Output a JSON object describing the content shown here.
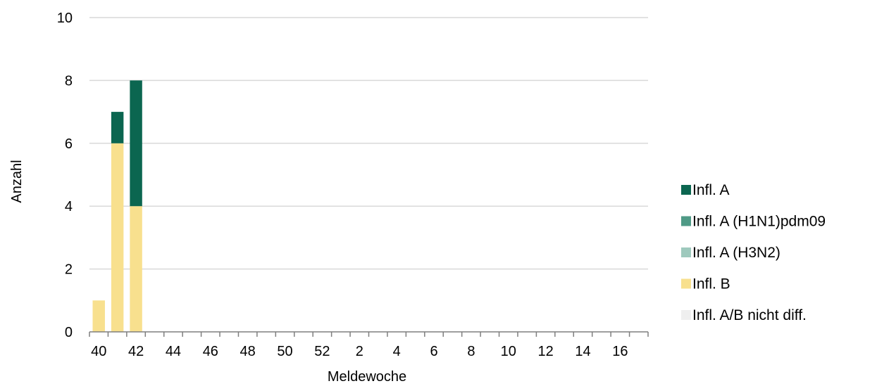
{
  "chart_data": {
    "type": "bar",
    "stacked": true,
    "xlabel": "Meldewoche",
    "ylabel": "Anzahl",
    "ylim": [
      0,
      10
    ],
    "yticks": [
      0,
      2,
      4,
      6,
      8,
      10
    ],
    "grid": true,
    "legend_position": "right",
    "categories": [
      "40",
      "41",
      "42",
      "43",
      "44",
      "45",
      "46",
      "47",
      "48",
      "49",
      "50",
      "51",
      "52",
      "1",
      "2",
      "3",
      "4",
      "5",
      "6",
      "7",
      "8",
      "9",
      "10",
      "11",
      "12",
      "13",
      "14",
      "15",
      "16",
      "17"
    ],
    "xtick_labels": [
      "40",
      "42",
      "44",
      "46",
      "48",
      "50",
      "52",
      "2",
      "4",
      "6",
      "8",
      "10",
      "12",
      "14",
      "16"
    ],
    "series": [
      {
        "name": "Infl. A",
        "color": "#0b6650",
        "values": [
          0,
          1,
          4,
          0,
          0,
          0,
          0,
          0,
          0,
          0,
          0,
          0,
          0,
          0,
          0,
          0,
          0,
          0,
          0,
          0,
          0,
          0,
          0,
          0,
          0,
          0,
          0,
          0,
          0,
          0
        ]
      },
      {
        "name": "Infl. A (H1N1)pdm09",
        "color": "#4f9a86",
        "values": [
          0,
          0,
          0,
          0,
          0,
          0,
          0,
          0,
          0,
          0,
          0,
          0,
          0,
          0,
          0,
          0,
          0,
          0,
          0,
          0,
          0,
          0,
          0,
          0,
          0,
          0,
          0,
          0,
          0,
          0
        ]
      },
      {
        "name": "Infl. A (H3N2)",
        "color": "#9ec9bd",
        "values": [
          0,
          0,
          0,
          0,
          0,
          0,
          0,
          0,
          0,
          0,
          0,
          0,
          0,
          0,
          0,
          0,
          0,
          0,
          0,
          0,
          0,
          0,
          0,
          0,
          0,
          0,
          0,
          0,
          0,
          0
        ]
      },
      {
        "name": "Infl. B",
        "color": "#f8e08e",
        "values": [
          1,
          6,
          4,
          0,
          0,
          0,
          0,
          0,
          0,
          0,
          0,
          0,
          0,
          0,
          0,
          0,
          0,
          0,
          0,
          0,
          0,
          0,
          0,
          0,
          0,
          0,
          0,
          0,
          0,
          0
        ]
      },
      {
        "name": "Infl. A/B nicht diff.",
        "color": "#efefef",
        "values": [
          0,
          0,
          0,
          0,
          0,
          0,
          0,
          0,
          0,
          0,
          0,
          0,
          0,
          0,
          0,
          0,
          0,
          0,
          0,
          0,
          0,
          0,
          0,
          0,
          0,
          0,
          0,
          0,
          0,
          0
        ]
      }
    ]
  }
}
